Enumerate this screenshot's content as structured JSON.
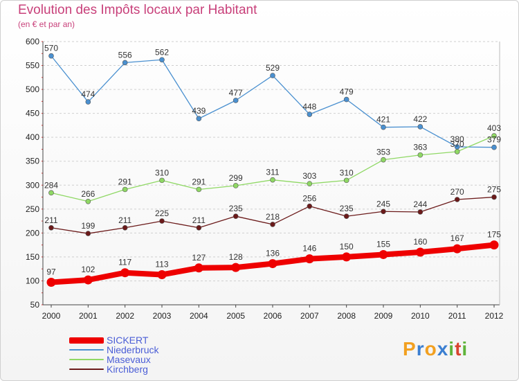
{
  "header": {
    "title": "Evolution des Impôts locaux par Habitant",
    "subtitle": "(en € et par an)"
  },
  "brand": {
    "letters": [
      {
        "char": "P",
        "color": "#f2a020"
      },
      {
        "char": "r",
        "color": "#3b7fd1"
      },
      {
        "char": "o",
        "color": "#f2a020"
      },
      {
        "char": "x",
        "color": "#3b7fd1"
      },
      {
        "char": "i",
        "color": "#5fb33a"
      },
      {
        "char": "t",
        "color": "#d8442f"
      },
      {
        "char": "i",
        "color": "#5fb33a"
      }
    ]
  },
  "chart_data": {
    "type": "line",
    "title": "Evolution des Impôts locaux par Habitant",
    "subtitle": "(en € et par an)",
    "xlabel": "",
    "ylabel": "",
    "x": [
      "2000",
      "2001",
      "2002",
      "2003",
      "2004",
      "2005",
      "2006",
      "2007",
      "2008",
      "2009",
      "2010",
      "2011",
      "2012"
    ],
    "ylim": [
      50,
      600
    ],
    "yticks": [
      50,
      100,
      150,
      200,
      250,
      300,
      350,
      400,
      450,
      500,
      550,
      600
    ],
    "grid": "dashed-horizontal",
    "legend_position": "bottom-left",
    "series": [
      {
        "name": "SICKERT",
        "color": "#ee0000",
        "weight": "thick",
        "values": [
          97,
          102,
          117,
          113,
          127,
          128,
          136,
          146,
          150,
          155,
          160,
          167,
          175
        ]
      },
      {
        "name": "Niederbruck",
        "color": "#4a90d0",
        "weight": "thin",
        "values": [
          570,
          474,
          556,
          562,
          439,
          477,
          529,
          448,
          479,
          421,
          422,
          380,
          379
        ]
      },
      {
        "name": "Masevaux",
        "color": "#8fd864",
        "weight": "thin",
        "values": [
          284,
          266,
          291,
          310,
          291,
          299,
          311,
          303,
          310,
          353,
          363,
          370,
          403
        ]
      },
      {
        "name": "Kirchberg",
        "color": "#6b1a1a",
        "weight": "thin",
        "values": [
          211,
          199,
          211,
          225,
          211,
          235,
          218,
          256,
          235,
          245,
          244,
          270,
          275
        ]
      }
    ]
  }
}
